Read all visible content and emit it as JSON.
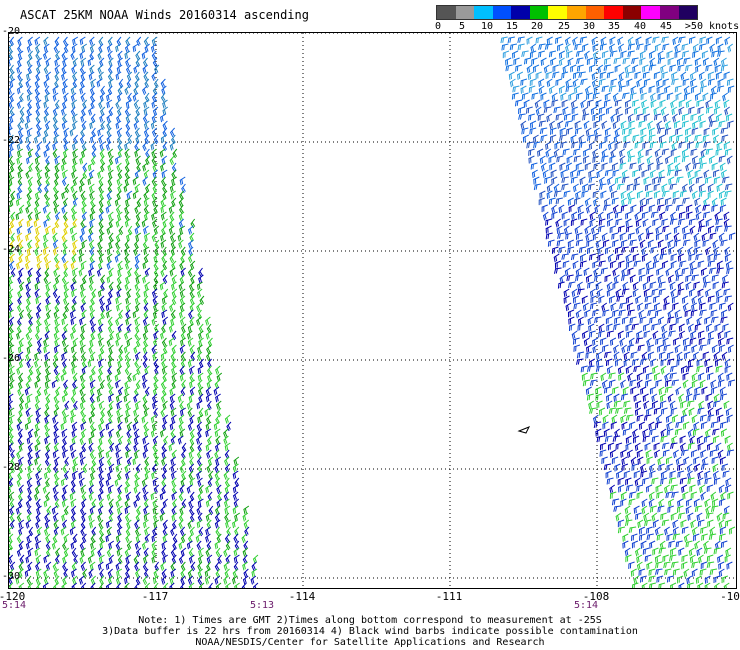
{
  "title": "ASCAT 25KM NOAA Winds 20160314 ascending",
  "legend": {
    "colors": [
      "#555555",
      "#9a9a9a",
      "#00bfff",
      "#0050ff",
      "#0000aa",
      "#00c000",
      "#ffff00",
      "#ffa500",
      "#ff6000",
      "#ff0000",
      "#8b0000",
      "#ff00ff",
      "#800080",
      "#200060"
    ],
    "labels": [
      "0",
      "5",
      "10",
      "15",
      "20",
      "25",
      "30",
      "35",
      "40",
      "45",
      ">50 knots"
    ]
  },
  "map": {
    "lon_range": [
      -120,
      -107.5
    ],
    "lat_range": [
      -30,
      -20.2
    ],
    "lon_labels": [
      "-120",
      "-117",
      "-114",
      "-111",
      "-108",
      "-10"
    ],
    "lat_labels": [
      "-20",
      "-22",
      "-24",
      "-26",
      "-28",
      "-30"
    ],
    "times": [
      "5:14",
      "5:13",
      "5:14"
    ]
  },
  "notes": {
    "line1": "Note: 1) Times are GMT 2)Times along bottom correspond to measurement at -25S",
    "line2": "3)Data buffer is 22 hrs from 20160314 4) Black wind barbs indicate possible contamination",
    "line3": "NOAA/NESDIS/Center for Satellite Applications and Research"
  }
}
